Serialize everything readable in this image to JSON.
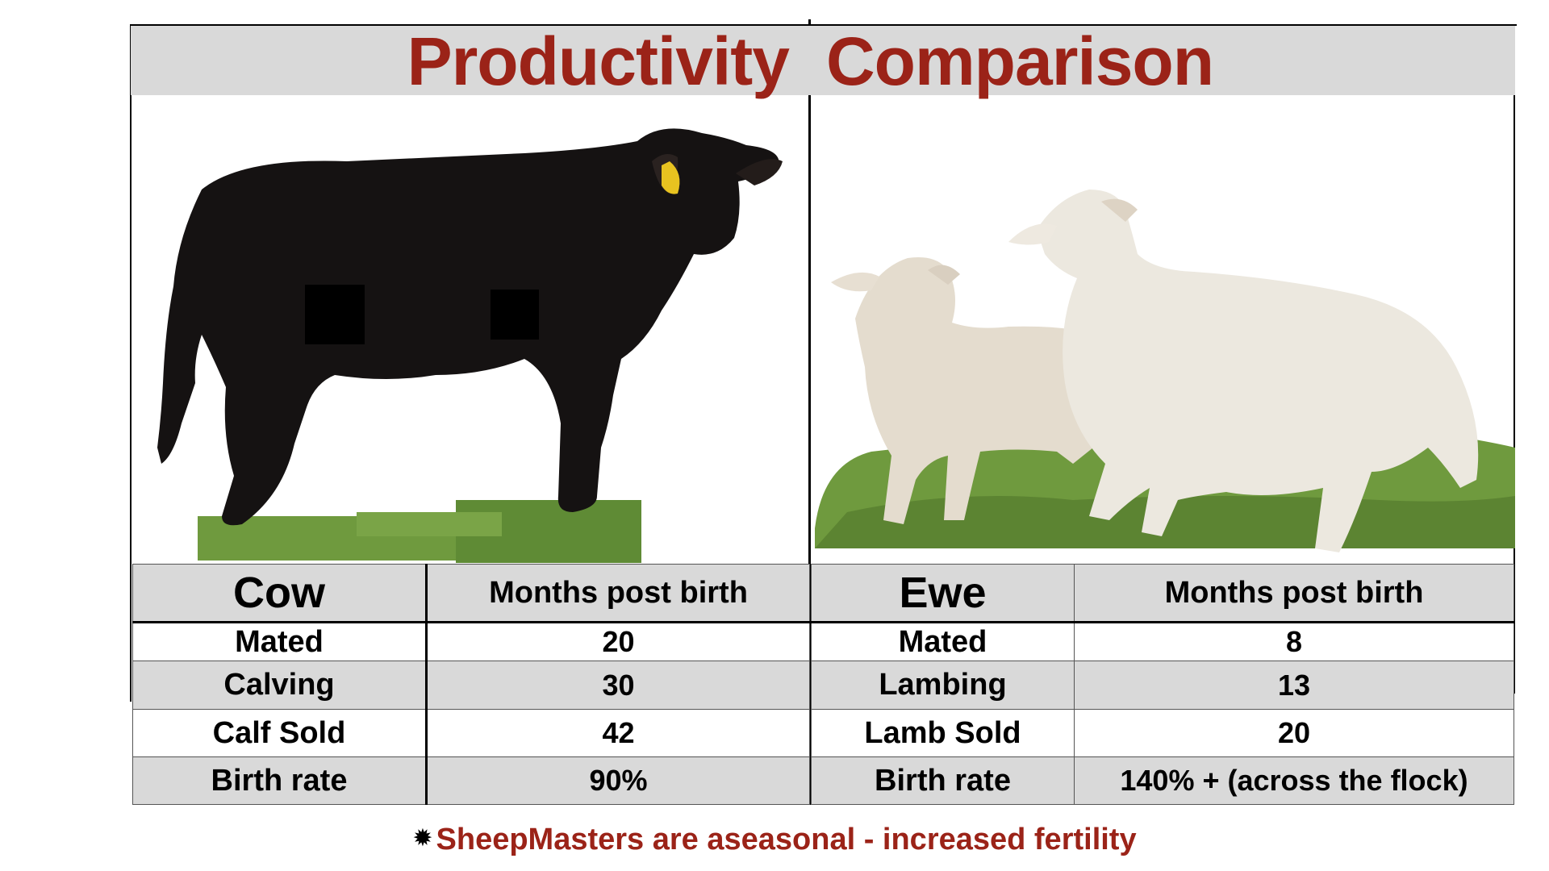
{
  "title": {
    "left": "Productivity",
    "right": "Comparison"
  },
  "photos": {
    "left_icon": "cow-photo",
    "right_icon": "sheep-photo"
  },
  "colors": {
    "title_red": "#9b2318",
    "band_gray": "#d9d9d9",
    "cow_black": "#151212",
    "sheep_white": "#ece8df",
    "grass_green": "#6f9a3e"
  },
  "tables": {
    "cow": {
      "animal": "Cow",
      "column_header": "Months post birth",
      "rows": [
        {
          "label": "Mated",
          "value": "20"
        },
        {
          "label": "Calving",
          "value": "30"
        },
        {
          "label": "Calf Sold",
          "value": "42"
        },
        {
          "label": "Birth rate",
          "value": "90%"
        }
      ]
    },
    "ewe": {
      "animal": "Ewe",
      "column_header": "Months post birth",
      "rows": [
        {
          "label": "Mated",
          "value": "8"
        },
        {
          "label": "Lambing",
          "value": "13"
        },
        {
          "label": "Lamb Sold",
          "value": "20"
        },
        {
          "label": "Birth rate",
          "value": "140% + (across the flock)"
        }
      ]
    }
  },
  "footnote": {
    "marker_icon": "asterisk-icon",
    "text": "SheepMasters are aseasonal - increased fertility"
  }
}
